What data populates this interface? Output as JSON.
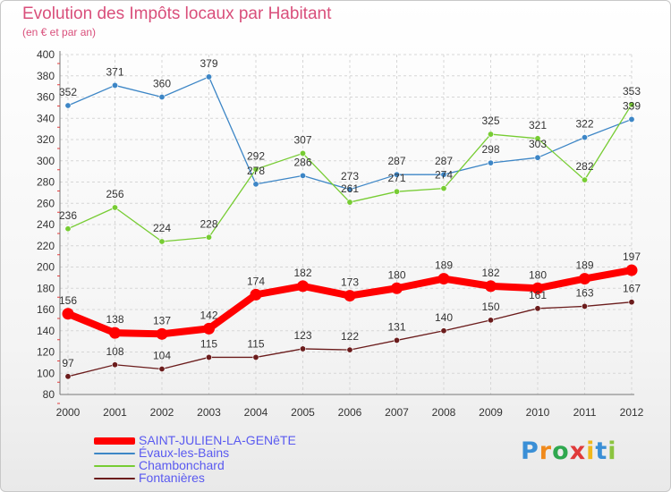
{
  "title": "Evolution des Impôts locaux par Habitant",
  "subtitle": "(en € et par an)",
  "logo": {
    "letters": [
      {
        "ch": "P",
        "color": "#3a8fd6"
      },
      {
        "ch": "r",
        "color": "#f08a1c"
      },
      {
        "ch": "o",
        "color": "#2fa84f"
      },
      {
        "ch": "x",
        "color": "#e03a3a"
      },
      {
        "ch": "i",
        "color": "#f0b81c"
      },
      {
        "ch": "t",
        "color": "#3a8fd6"
      },
      {
        "ch": "i",
        "color": "#8bc43f"
      }
    ]
  },
  "chart_data": {
    "type": "line",
    "title": "Evolution des Impôts locaux par Habitant",
    "subtitle": "(en € et par an)",
    "xlabel": "",
    "ylabel": "",
    "x": [
      "2000",
      "2001",
      "2002",
      "2003",
      "2004",
      "2005",
      "2006",
      "2007",
      "2008",
      "2009",
      "2010",
      "2011",
      "2012"
    ],
    "ylim": [
      80,
      400
    ],
    "yticks": [
      80,
      100,
      120,
      140,
      160,
      180,
      200,
      220,
      240,
      260,
      280,
      300,
      320,
      340,
      360,
      380,
      400
    ],
    "grid": true,
    "legend_position": "bottom-left",
    "series": [
      {
        "name": "SAINT-JULIEN-LA-GENêTE",
        "color": "#ff0000",
        "values": [
          156,
          138,
          137,
          142,
          174,
          182,
          173,
          180,
          189,
          182,
          180,
          189,
          197
        ]
      },
      {
        "name": "Évaux-les-Bains",
        "color": "#3d86c6",
        "values": [
          352,
          371,
          360,
          379,
          278,
          286,
          273,
          287,
          287,
          298,
          303,
          322,
          339
        ]
      },
      {
        "name": "Chambonchard",
        "color": "#77cc33",
        "values": [
          236,
          256,
          224,
          228,
          292,
          307,
          261,
          271,
          274,
          325,
          321,
          282,
          353
        ]
      },
      {
        "name": "Fontanières",
        "color": "#6b1c1c",
        "values": [
          97,
          108,
          104,
          115,
          115,
          123,
          122,
          131,
          140,
          150,
          161,
          163,
          167
        ]
      }
    ]
  }
}
